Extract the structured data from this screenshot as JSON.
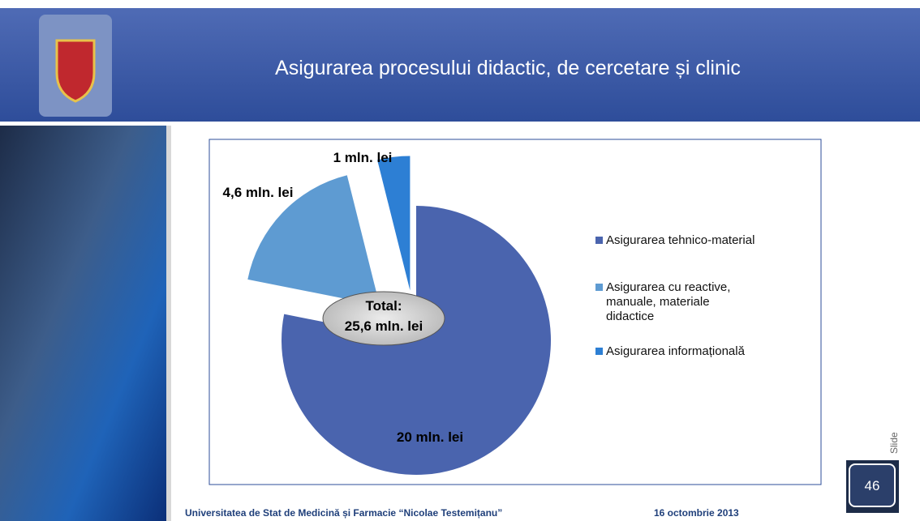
{
  "chart_data": {
    "type": "pie",
    "title": "Asigurarea procesului didactic, de cercetare și clinic",
    "categories": [
      "Asigurarea tehnico-material",
      "Asigurarea cu reactive, manuale, materiale didactice",
      "Asigurarea informațională"
    ],
    "values": [
      20,
      4.6,
      1
    ],
    "value_labels": [
      "20 mln. lei",
      "4,6 mln. lei",
      "1 mln. lei"
    ],
    "colors": [
      "#4a64ae",
      "#5e9bd2",
      "#2d7fd4"
    ],
    "exploded": [
      false,
      true,
      true
    ],
    "legend": "right",
    "annotation": [
      "Total:",
      "25,6 mln. lei"
    ]
  },
  "footer": {
    "institution": "Universitatea de Stat de Medicină și Farmacie “Nicolae Testemițanu”",
    "date": "16 octombrie 2013"
  },
  "slide": {
    "label": "Slide",
    "number": "46"
  }
}
